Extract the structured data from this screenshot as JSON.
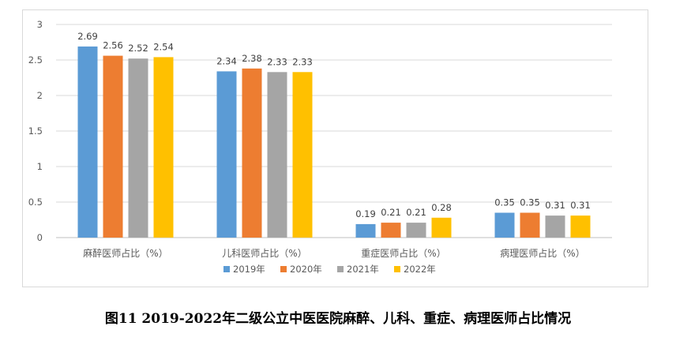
{
  "caption": "图11 2019-2022年二级公立中医医院麻醉、儿科、重症、病理医师占比情况",
  "chart_data": {
    "type": "bar",
    "categories": [
      "麻醉医师占比（%）",
      "儿科医师占比（%）",
      "重症医师占比（%）",
      "病理医师占比（%）"
    ],
    "series": [
      {
        "name": "2019年",
        "color": "#5b9bd5",
        "values": [
          2.69,
          2.34,
          0.19,
          0.35
        ]
      },
      {
        "name": "2020年",
        "color": "#ed7d31",
        "values": [
          2.56,
          2.38,
          0.21,
          0.35
        ]
      },
      {
        "name": "2021年",
        "color": "#a5a5a5",
        "values": [
          2.52,
          2.33,
          0.21,
          0.31
        ]
      },
      {
        "name": "2022年",
        "color": "#ffc000",
        "values": [
          2.54,
          2.33,
          0.28,
          0.31
        ]
      }
    ],
    "value_labels": [
      [
        "2.69",
        "2.34",
        "0.19",
        "0.35"
      ],
      [
        "2.56",
        "2.38",
        "0.21",
        "0.35"
      ],
      [
        "2.52",
        "2.33",
        "0.21",
        "0.31"
      ],
      [
        "2.54",
        "2.33",
        "0.28",
        "0.31"
      ]
    ],
    "yticks": [
      "0",
      "0.5",
      "1",
      "1.5",
      "2",
      "2.5",
      "3"
    ],
    "ylim": [
      0,
      3
    ],
    "grid": true,
    "legend_position": "bottom"
  }
}
